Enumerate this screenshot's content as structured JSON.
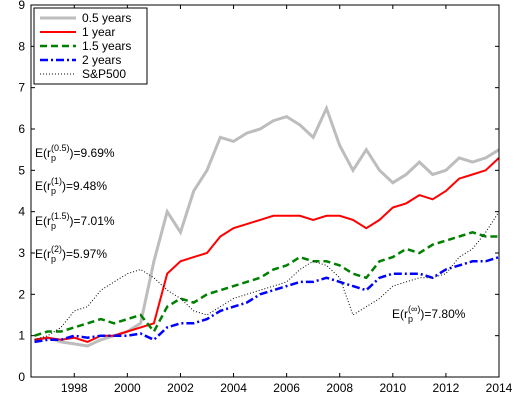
{
  "chart_data": {
    "type": "line",
    "x": [
      1996.5,
      1997,
      1997.5,
      1998,
      1998.5,
      1999,
      1999.5,
      2000,
      2000.5,
      2001,
      2001.5,
      2002,
      2002.5,
      2003,
      2003.5,
      2004,
      2004.5,
      2005,
      2005.5,
      2006,
      2006.5,
      2007,
      2007.5,
      2008,
      2008.5,
      2009,
      2009.5,
      2010,
      2010.5,
      2011,
      2011.5,
      2012,
      2012.5,
      2013,
      2013.5,
      2014
    ],
    "series": [
      {
        "name": "0.5 years",
        "color": "#bdbdbd",
        "style": "solid",
        "width": 3,
        "values": [
          0.9,
          0.95,
          0.85,
          0.8,
          0.75,
          0.9,
          1.0,
          1.1,
          1.3,
          2.8,
          4.0,
          3.5,
          4.5,
          5.0,
          5.8,
          5.7,
          5.9,
          6.0,
          6.2,
          6.3,
          6.1,
          5.8,
          6.5,
          5.6,
          5.0,
          5.5,
          5.0,
          4.7,
          4.9,
          5.2,
          4.9,
          5.0,
          5.3,
          5.2,
          5.3,
          5.5
        ]
      },
      {
        "name": "1 year",
        "color": "#ff0000",
        "style": "solid",
        "width": 2,
        "values": [
          0.9,
          0.95,
          0.9,
          0.95,
          0.85,
          1.0,
          1.0,
          1.1,
          1.2,
          1.3,
          2.5,
          2.8,
          2.9,
          3.0,
          3.4,
          3.6,
          3.7,
          3.8,
          3.9,
          3.9,
          3.9,
          3.8,
          3.9,
          3.9,
          3.8,
          3.6,
          3.8,
          4.1,
          4.2,
          4.4,
          4.3,
          4.5,
          4.8,
          4.9,
          5.0,
          5.3
        ]
      },
      {
        "name": "1.5 years",
        "color": "#008000",
        "style": "dashed",
        "width": 2.5,
        "values": [
          1.0,
          1.1,
          1.1,
          1.2,
          1.3,
          1.4,
          1.3,
          1.4,
          1.5,
          1.1,
          1.7,
          1.9,
          1.8,
          2.0,
          2.1,
          2.2,
          2.3,
          2.4,
          2.6,
          2.7,
          2.9,
          2.8,
          2.8,
          2.7,
          2.5,
          2.4,
          2.8,
          2.9,
          3.1,
          3.0,
          3.2,
          3.3,
          3.4,
          3.5,
          3.4,
          3.4
        ]
      },
      {
        "name": "2 years",
        "color": "#0000ff",
        "style": "dashdot",
        "width": 2.5,
        "values": [
          0.85,
          0.9,
          0.9,
          1.0,
          0.95,
          1.0,
          1.0,
          1.0,
          1.05,
          0.9,
          1.2,
          1.3,
          1.3,
          1.4,
          1.6,
          1.7,
          1.8,
          2.0,
          2.1,
          2.2,
          2.3,
          2.3,
          2.4,
          2.3,
          2.2,
          2.1,
          2.4,
          2.5,
          2.5,
          2.5,
          2.4,
          2.6,
          2.7,
          2.8,
          2.8,
          2.9
        ]
      },
      {
        "name": "S&P500",
        "color": "#000000",
        "style": "dotted",
        "width": 1,
        "values": [
          0.9,
          1.0,
          1.2,
          1.6,
          1.7,
          2.1,
          2.3,
          2.5,
          2.6,
          2.4,
          2.1,
          1.9,
          1.6,
          1.5,
          1.7,
          1.9,
          2.0,
          2.1,
          2.2,
          2.3,
          2.6,
          2.8,
          2.7,
          2.4,
          1.5,
          1.7,
          1.9,
          2.2,
          2.3,
          2.4,
          2.4,
          2.5,
          2.9,
          3.1,
          3.5,
          4.0
        ]
      }
    ],
    "xlim": [
      1996.37,
      2014
    ],
    "ylim": [
      0,
      9
    ],
    "xticks": [
      1998,
      2000,
      2002,
      2004,
      2006,
      2008,
      2010,
      2012,
      2014
    ],
    "yticks": [
      0,
      1,
      2,
      3,
      4,
      5,
      6,
      7,
      8,
      9
    ],
    "legend": "upper left",
    "annotations": [
      {
        "base": "E(r",
        "sup": "(0.5)",
        "sub": "p",
        "rest": ")=9.69%",
        "color": "#555555"
      },
      {
        "base": "E(r",
        "sup": "(1)",
        "sub": "p",
        "rest": ")=9.48%",
        "color": "#cc0000"
      },
      {
        "base": "E(r",
        "sup": "(1.5)",
        "sub": "p",
        "rest": ")=7.01%",
        "color": "#008000"
      },
      {
        "base": "E(r",
        "sup": "(2)",
        "sub": "p",
        "rest": ")=5.97%",
        "color": "#000080"
      },
      {
        "base": "E(r",
        "sup": "(∞)",
        "sub": "p",
        "rest": ")=7.80%",
        "color": "#000000"
      }
    ]
  }
}
